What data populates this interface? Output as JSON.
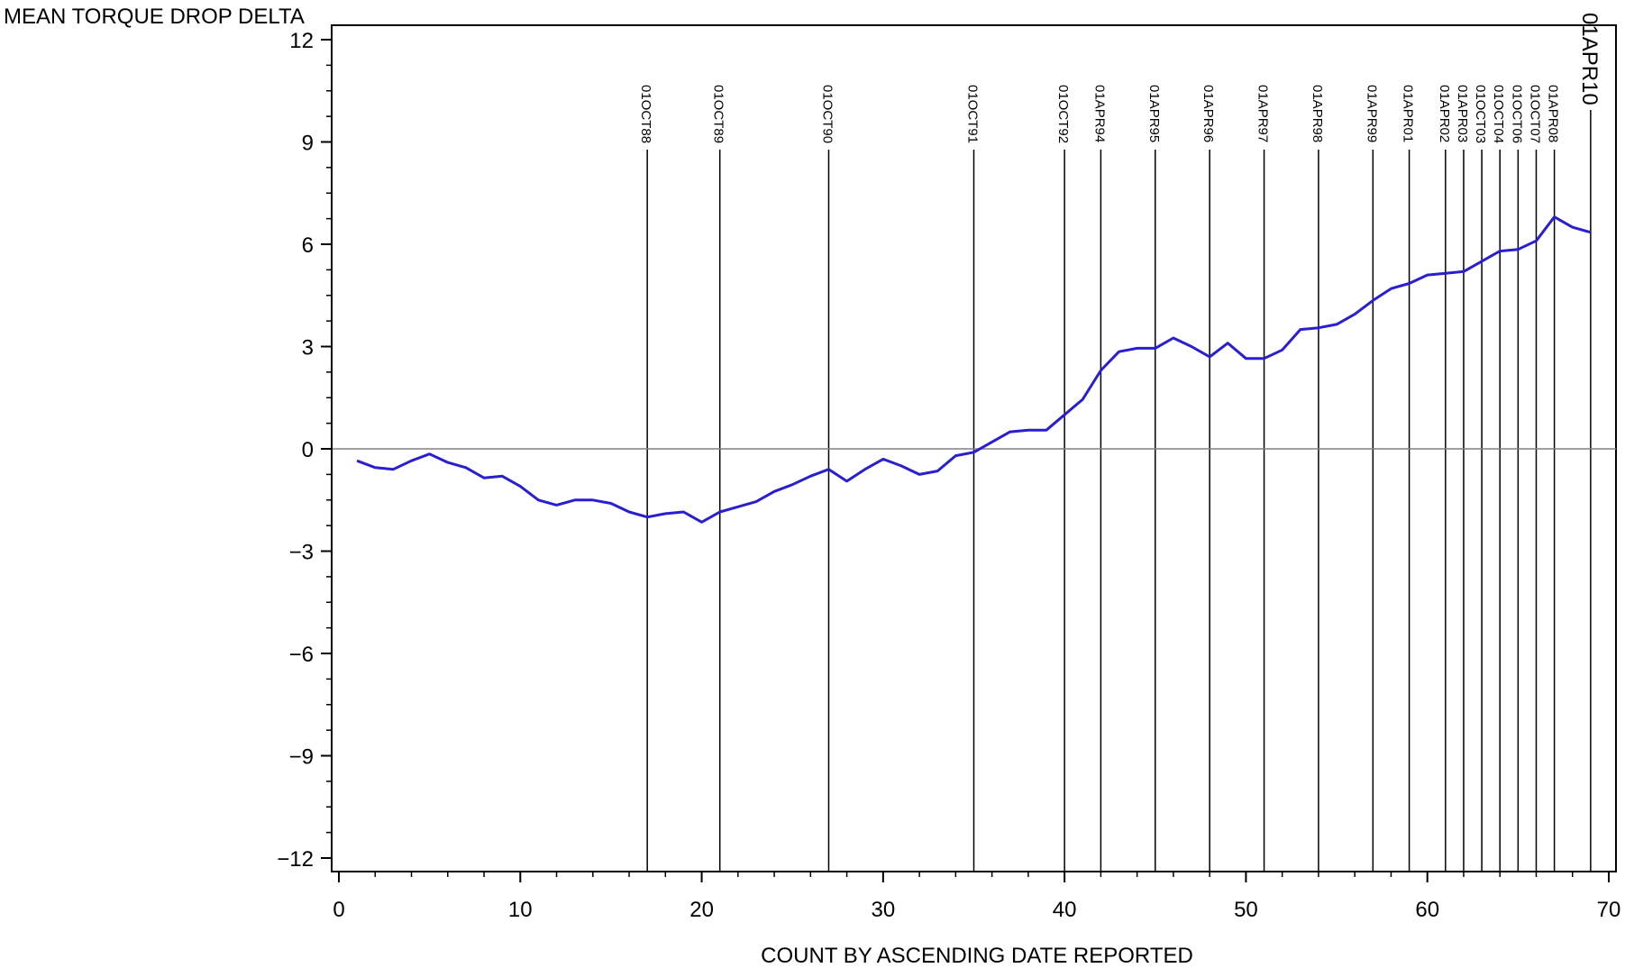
{
  "chart_data": {
    "type": "line",
    "title": "",
    "ylabel": "MEAN TORQUE DROP DELTA",
    "xlabel": "COUNT BY ASCENDING DATE REPORTED",
    "xlim": [
      0,
      70
    ],
    "ylim": [
      -12,
      12
    ],
    "x_ticks": [
      0,
      10,
      20,
      30,
      40,
      50,
      60,
      70
    ],
    "y_ticks": [
      12,
      9,
      6,
      3,
      0,
      -3,
      -6,
      -9,
      -12
    ],
    "y_tick_labels": [
      "12",
      "9",
      "6",
      "3",
      "0",
      "−3",
      "−6",
      "−9",
      "−12"
    ],
    "x_tick_labels": [
      "0",
      "10",
      "20",
      "30",
      "40",
      "50",
      "60",
      "70"
    ],
    "zero_line": true,
    "grid": false,
    "colors": {
      "series": "#2a1fd0",
      "reference": "#000000",
      "zero_line": "#808080"
    },
    "series": [
      {
        "x": [
          1,
          2,
          3,
          4,
          5,
          6,
          7,
          8,
          9,
          10,
          11,
          12,
          13,
          14,
          15,
          16,
          17,
          18,
          19,
          20,
          21,
          22,
          23,
          24,
          25,
          26,
          27,
          28,
          29,
          30,
          31,
          32,
          33,
          34,
          35,
          36,
          37,
          38,
          39,
          40,
          41,
          42,
          43,
          44,
          45,
          46,
          47,
          48,
          49,
          50,
          51,
          52,
          53,
          54,
          55,
          56,
          57,
          58,
          59,
          60,
          61,
          62,
          63,
          64,
          65,
          66,
          67,
          68,
          69
        ],
        "y": [
          -0.35,
          -0.55,
          -0.6,
          -0.35,
          -0.15,
          -0.4,
          -0.55,
          -0.85,
          -0.8,
          -1.1,
          -1.5,
          -1.65,
          -1.5,
          -1.5,
          -1.6,
          -1.85,
          -2.0,
          -1.9,
          -1.85,
          -2.15,
          -1.85,
          -1.7,
          -1.55,
          -1.25,
          -1.05,
          -0.8,
          -0.6,
          -0.95,
          -0.6,
          -0.3,
          -0.5,
          -0.75,
          -0.65,
          -0.2,
          -0.1,
          0.2,
          0.5,
          0.55,
          0.55,
          1.0,
          1.45,
          2.3,
          2.85,
          2.95,
          2.95,
          3.25,
          3.0,
          2.7,
          3.1,
          2.65,
          2.65,
          2.9,
          3.5,
          3.55,
          3.65,
          3.95,
          4.35,
          4.7,
          4.85,
          5.1,
          5.15,
          5.2,
          5.5,
          5.8,
          5.85,
          6.1,
          6.8,
          6.5,
          6.35
        ]
      }
    ],
    "reference_lines": [
      {
        "x": 17,
        "label": "01OCT88"
      },
      {
        "x": 21,
        "label": "01OCT89"
      },
      {
        "x": 27,
        "label": "01OCT90"
      },
      {
        "x": 35,
        "label": "01OCT91"
      },
      {
        "x": 40,
        "label": "01OCT92"
      },
      {
        "x": 42,
        "label": "01APR94"
      },
      {
        "x": 45,
        "label": "01APR95"
      },
      {
        "x": 48,
        "label": "01APR96"
      },
      {
        "x": 51,
        "label": "01APR97"
      },
      {
        "x": 54,
        "label": "01APR98"
      },
      {
        "x": 57,
        "label": "01APR99"
      },
      {
        "x": 59,
        "label": "01APR01"
      },
      {
        "x": 61,
        "label": "01APR02"
      },
      {
        "x": 62,
        "label": "01APR03"
      },
      {
        "x": 63,
        "label": "01OCT03"
      },
      {
        "x": 64,
        "label": "01OCT04"
      },
      {
        "x": 65,
        "label": "01OCT06"
      },
      {
        "x": 66,
        "label": "01OCT07"
      },
      {
        "x": 67,
        "label": "01APR08"
      },
      {
        "x": 69,
        "label": "01APR10",
        "large": true
      }
    ]
  }
}
